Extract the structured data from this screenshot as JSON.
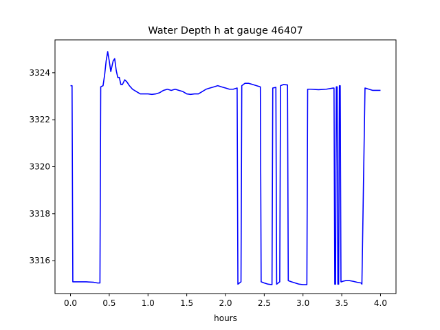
{
  "chart_data": {
    "type": "line",
    "title": "Water Depth h at gauge 46407",
    "xlabel": "hours",
    "ylabel": "",
    "xlim": [
      -0.2,
      4.2
    ],
    "ylim": [
      3314.6,
      3325.4
    ],
    "xticks": [
      0.0,
      0.5,
      1.0,
      1.5,
      2.0,
      2.5,
      3.0,
      3.5,
      4.0
    ],
    "xtick_labels": [
      "0.0",
      "0.5",
      "1.0",
      "1.5",
      "2.0",
      "2.5",
      "3.0",
      "3.5",
      "4.0"
    ],
    "yticks": [
      3316,
      3318,
      3320,
      3322,
      3324
    ],
    "ytick_labels": [
      "3316",
      "3318",
      "3320",
      "3322",
      "3324"
    ],
    "grid": false,
    "series": [
      {
        "name": "",
        "color": "#0000ff",
        "x": [
          0.0,
          0.02,
          0.03,
          0.05,
          0.1,
          0.2,
          0.3,
          0.35,
          0.38,
          0.39,
          0.42,
          0.44,
          0.46,
          0.48,
          0.5,
          0.52,
          0.55,
          0.57,
          0.59,
          0.61,
          0.63,
          0.65,
          0.67,
          0.7,
          0.73,
          0.76,
          0.8,
          0.85,
          0.9,
          0.95,
          1.0,
          1.05,
          1.1,
          1.15,
          1.2,
          1.25,
          1.3,
          1.35,
          1.4,
          1.45,
          1.5,
          1.55,
          1.6,
          1.65,
          1.7,
          1.75,
          1.8,
          1.85,
          1.9,
          1.95,
          2.0,
          2.05,
          2.1,
          2.15,
          2.16,
          2.2,
          2.21,
          2.25,
          2.3,
          2.35,
          2.4,
          2.45,
          2.46,
          2.5,
          2.55,
          2.6,
          2.61,
          2.65,
          2.66,
          2.7,
          2.71,
          2.75,
          2.8,
          2.81,
          2.85,
          2.9,
          2.95,
          3.0,
          3.05,
          3.06,
          3.1,
          3.2,
          3.3,
          3.39,
          3.4,
          3.41,
          3.42,
          3.43,
          3.44,
          3.45,
          3.46,
          3.47,
          3.48,
          3.49,
          3.5,
          3.51,
          3.55,
          3.6,
          3.65,
          3.7,
          3.75,
          3.76,
          3.8,
          3.85,
          3.9,
          3.95,
          4.0
        ],
        "y": [
          3323.45,
          3323.45,
          3315.1,
          3315.1,
          3315.1,
          3315.1,
          3315.08,
          3315.05,
          3315.05,
          3323.4,
          3323.45,
          3323.9,
          3324.5,
          3324.9,
          3324.5,
          3324.05,
          3324.5,
          3324.6,
          3324.1,
          3323.8,
          3323.8,
          3323.5,
          3323.5,
          3323.7,
          3323.6,
          3323.45,
          3323.3,
          3323.2,
          3323.1,
          3323.1,
          3323.1,
          3323.08,
          3323.1,
          3323.15,
          3323.25,
          3323.3,
          3323.25,
          3323.3,
          3323.25,
          3323.2,
          3323.1,
          3323.08,
          3323.1,
          3323.1,
          3323.2,
          3323.3,
          3323.35,
          3323.4,
          3323.45,
          3323.4,
          3323.35,
          3323.3,
          3323.3,
          3323.35,
          3315.0,
          3315.1,
          3323.45,
          3323.55,
          3323.55,
          3323.5,
          3323.45,
          3323.4,
          3315.1,
          3315.05,
          3315.0,
          3314.98,
          3323.35,
          3323.38,
          3315.0,
          3315.1,
          3323.45,
          3323.5,
          3323.48,
          3315.15,
          3315.1,
          3315.05,
          3315.0,
          3314.98,
          3314.98,
          3323.3,
          3323.3,
          3323.28,
          3323.3,
          3323.35,
          3323.35,
          3315.0,
          3315.0,
          3323.4,
          3323.4,
          3315.0,
          3315.0,
          3323.45,
          3323.45,
          3315.1,
          3315.1,
          3315.12,
          3315.15,
          3315.15,
          3315.12,
          3315.08,
          3315.05,
          3315.0,
          3323.35,
          3323.3,
          3323.25,
          3323.25,
          3323.25
        ]
      }
    ]
  }
}
